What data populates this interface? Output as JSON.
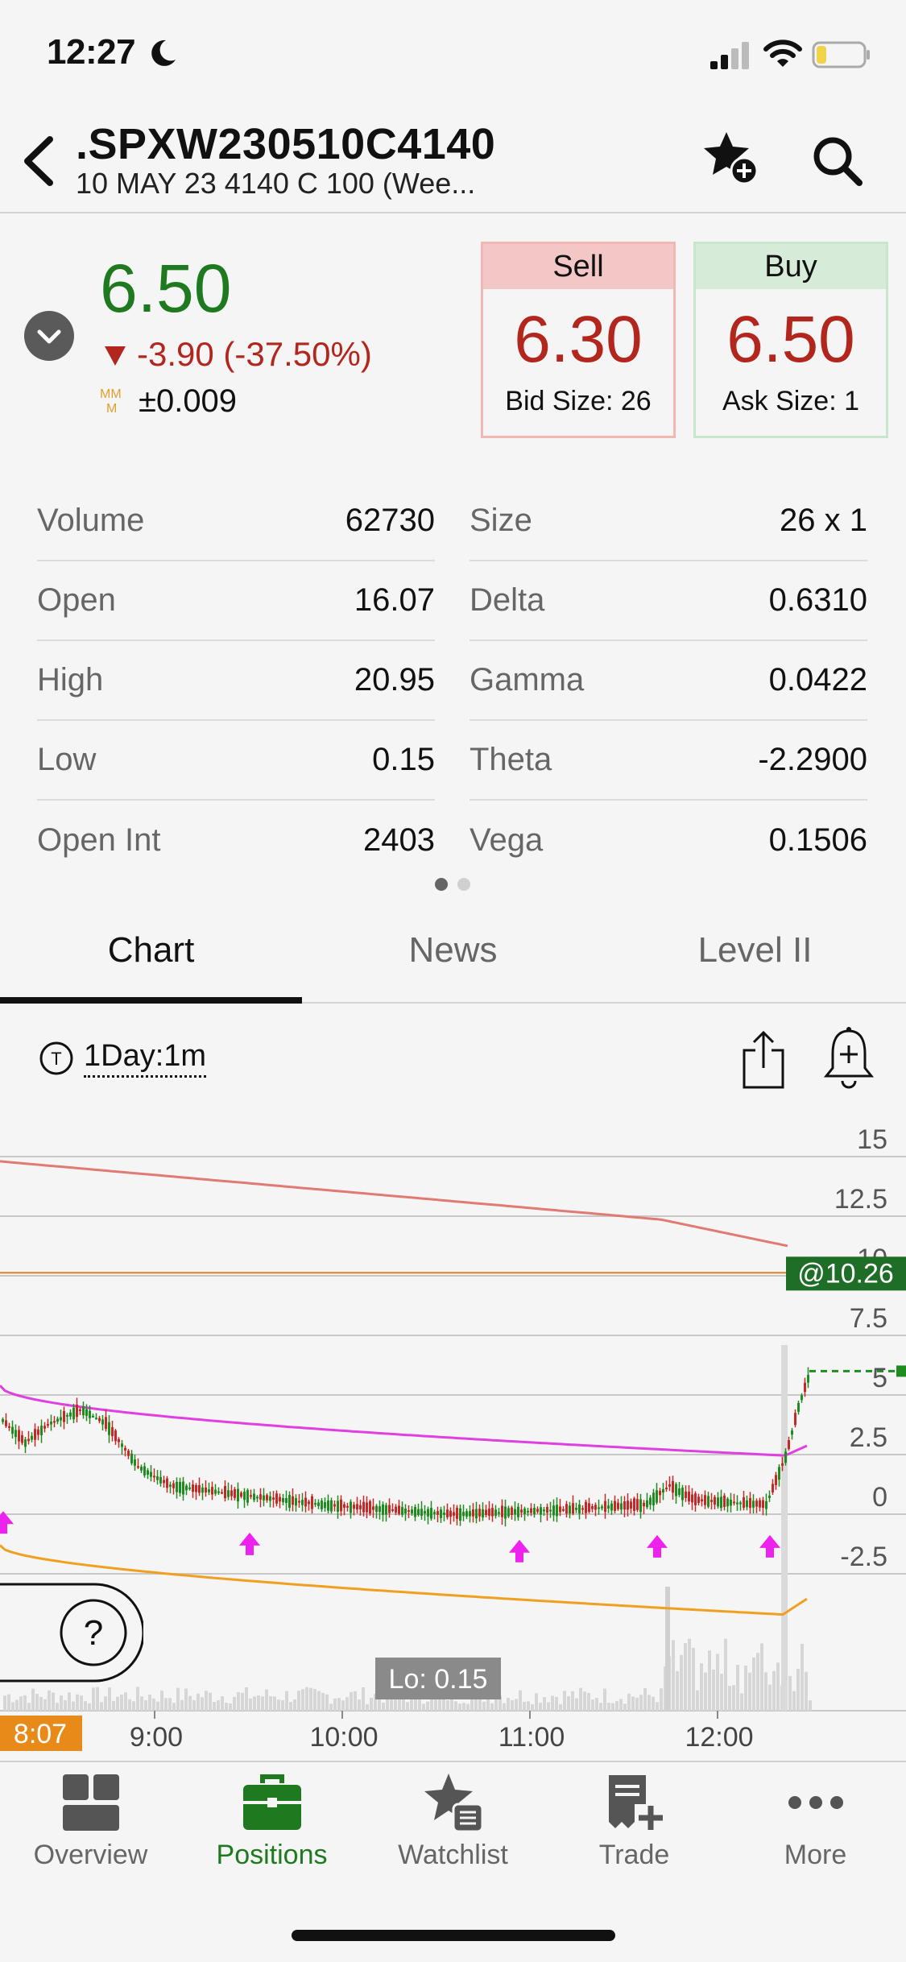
{
  "status": {
    "time": "12:27"
  },
  "header": {
    "symbol": ".SPXW230510C4140",
    "description": "10 MAY 23 4140 C 100 (Wee..."
  },
  "quote": {
    "last": "6.50",
    "change": "-3.90 (-37.50%)",
    "mm_value": "±0.009",
    "sell": {
      "label": "Sell",
      "price": "6.30",
      "size": "Bid Size: 26"
    },
    "buy": {
      "label": "Buy",
      "price": "6.50",
      "size": "Ask Size: 1"
    }
  },
  "stats_left": [
    {
      "label": "Volume",
      "value": "62730"
    },
    {
      "label": "Open",
      "value": "16.07"
    },
    {
      "label": "High",
      "value": "20.95"
    },
    {
      "label": "Low",
      "value": "0.15"
    },
    {
      "label": "Open Int",
      "value": "2403"
    }
  ],
  "stats_right": [
    {
      "label": "Size",
      "value": "26 x 1"
    },
    {
      "label": "Delta",
      "value": "0.6310"
    },
    {
      "label": "Gamma",
      "value": "0.0422"
    },
    {
      "label": "Theta",
      "value": "-2.2900"
    },
    {
      "label": "Vega",
      "value": "0.1506"
    }
  ],
  "pager": {
    "count": 2,
    "active": 0
  },
  "tabs": [
    {
      "label": "Chart",
      "active": true
    },
    {
      "label": "News",
      "active": false
    },
    {
      "label": "Level II",
      "active": false
    }
  ],
  "chart_toolbar": {
    "interval": "1Day:1m",
    "timezone_letter": "T"
  },
  "chart_data": {
    "type": "line",
    "y_ticks": [
      "15",
      "12.5",
      "10",
      "7.5",
      "5",
      "2.5",
      "0",
      "-2.5"
    ],
    "x_ticks": [
      "9:00",
      "10:00",
      "11:00",
      "12:00"
    ],
    "time_badge": "8:07",
    "price_badge": "@10.26",
    "low_badge": "Lo: 0.15",
    "colors": {
      "up": "#1e8c1e",
      "down": "#c62828",
      "upper": "#e07a72",
      "middle": "#e040e0",
      "lower": "#f0a020",
      "ref": "#e08020"
    }
  },
  "help": {
    "label": "?"
  },
  "tab_bar": [
    {
      "label": "Overview",
      "icon": "overview-icon",
      "active": false
    },
    {
      "label": "Positions",
      "icon": "briefcase-icon",
      "active": true
    },
    {
      "label": "Watchlist",
      "icon": "watchlist-icon",
      "active": false
    },
    {
      "label": "Trade",
      "icon": "trade-icon",
      "active": false
    },
    {
      "label": "More",
      "icon": "more-icon",
      "active": false
    }
  ]
}
